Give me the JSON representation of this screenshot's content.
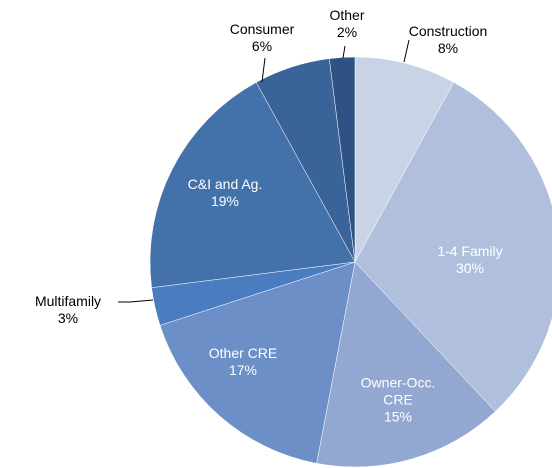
{
  "chart_data": {
    "type": "pie",
    "categories": [
      "Construction",
      "1-4 Family",
      "Owner-Occ. CRE",
      "Other CRE",
      "Multifamily",
      "C&I and Ag.",
      "Consumer",
      "Other"
    ],
    "values": [
      8,
      30,
      15,
      17,
      3,
      19,
      6,
      2
    ],
    "value_labels": [
      "8%",
      "30%",
      "15%",
      "17%",
      "3%",
      "19%",
      "6%",
      "2%"
    ],
    "colors": [
      "#c9d3e6",
      "#b0bfdc",
      "#93a8d1",
      "#6c8fc7",
      "#4a7cc0",
      "#4372aa",
      "#3a6399",
      "#2f5285"
    ]
  }
}
